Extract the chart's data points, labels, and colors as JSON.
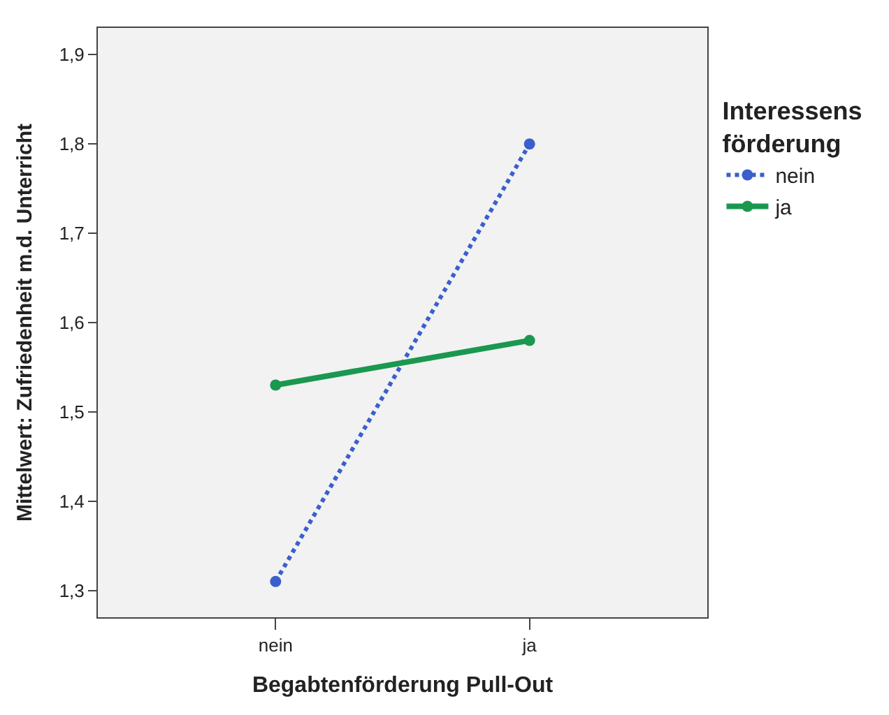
{
  "chart_data": {
    "type": "line",
    "xlabel": "Begabtenförderung Pull-Out",
    "ylabel": "Mittelwert: Zufriedenheit m.d. Unterricht",
    "legend_title": "Interessens förderung",
    "categories": [
      "nein",
      "ja"
    ],
    "series": [
      {
        "name": "nein",
        "color": "#3a5fcd",
        "values": [
          1.31,
          1.8
        ],
        "line_style": "dotted"
      },
      {
        "name": "ja",
        "color": "#1a9850",
        "values": [
          1.53,
          1.58
        ],
        "line_style": "solid"
      }
    ],
    "ylim": [
      1.27,
      1.93
    ],
    "yticks": [
      {
        "value": 1.3,
        "label": "1,3"
      },
      {
        "value": 1.4,
        "label": "1,4"
      },
      {
        "value": 1.5,
        "label": "1,5"
      },
      {
        "value": 1.6,
        "label": "1,6"
      },
      {
        "value": 1.7,
        "label": "1,7"
      },
      {
        "value": 1.8,
        "label": "1,8"
      },
      {
        "value": 1.9,
        "label": "1,9"
      }
    ],
    "marker": "circle",
    "grid": false,
    "legend": "top right"
  }
}
